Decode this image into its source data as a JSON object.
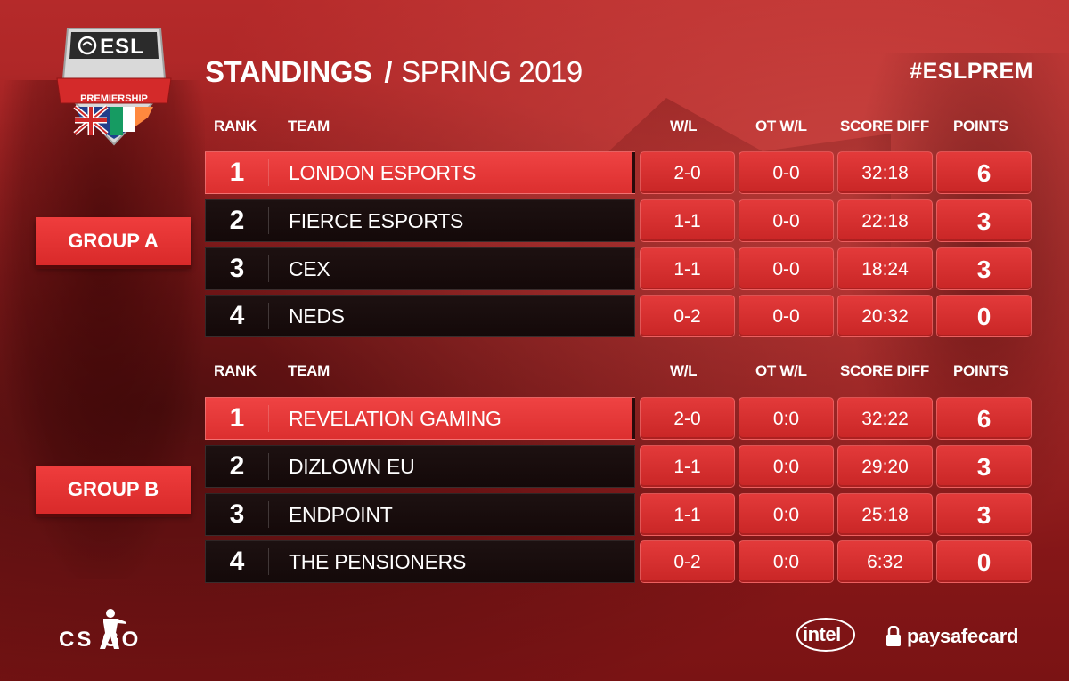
{
  "header": {
    "title": "STANDINGS",
    "separator": "/",
    "season": "SPRING 2019",
    "hashtag": "#ESLPREM"
  },
  "logo": {
    "brand": "ESL",
    "subtitle": "PREMIERSHIP"
  },
  "columns": {
    "rank": "RANK",
    "team": "TEAM",
    "wl": "W/L",
    "ot_wl": "OT W/L",
    "score_diff": "SCORE DIFF",
    "points": "POINTS"
  },
  "groups": [
    {
      "label": "GROUP A",
      "rows": [
        {
          "rank": "1",
          "team": "LONDON ESPORTS",
          "wl": "2-0",
          "ot_wl": "0-0",
          "score_diff": "32:18",
          "points": "6"
        },
        {
          "rank": "2",
          "team": "FIERCE ESPORTS",
          "wl": "1-1",
          "ot_wl": "0-0",
          "score_diff": "22:18",
          "points": "3"
        },
        {
          "rank": "3",
          "team": "CEX",
          "wl": "1-1",
          "ot_wl": "0-0",
          "score_diff": "18:24",
          "points": "3"
        },
        {
          "rank": "4",
          "team": "NEDS",
          "wl": "0-2",
          "ot_wl": "0-0",
          "score_diff": "20:32",
          "points": "0"
        }
      ]
    },
    {
      "label": "GROUP B",
      "rows": [
        {
          "rank": "1",
          "team": "REVELATION GAMING",
          "wl": "2-0",
          "ot_wl": "0:0",
          "score_diff": "32:22",
          "points": "6"
        },
        {
          "rank": "2",
          "team": "DIZLOWN EU",
          "wl": "1-1",
          "ot_wl": "0:0",
          "score_diff": "29:20",
          "points": "3"
        },
        {
          "rank": "3",
          "team": "ENDPOINT",
          "wl": "1-1",
          "ot_wl": "0:0",
          "score_diff": "25:18",
          "points": "3"
        },
        {
          "rank": "4",
          "team": "THE PENSIONERS",
          "wl": "0-2",
          "ot_wl": "0:0",
          "score_diff": "6:32",
          "points": "0"
        }
      ]
    }
  ],
  "footer": {
    "csgo": "CS GO",
    "intel": "intel",
    "paysafecard": "paysafecard"
  },
  "colors": {
    "accent_red": "#e33a3a",
    "dark_row": "#1d1111",
    "background": "#9a1d1e"
  },
  "icons": [
    "esl-shield-logo",
    "uk-ireland-flag",
    "csgo-soldier-icon",
    "intel-logo",
    "paysafecard-lock-icon"
  ]
}
